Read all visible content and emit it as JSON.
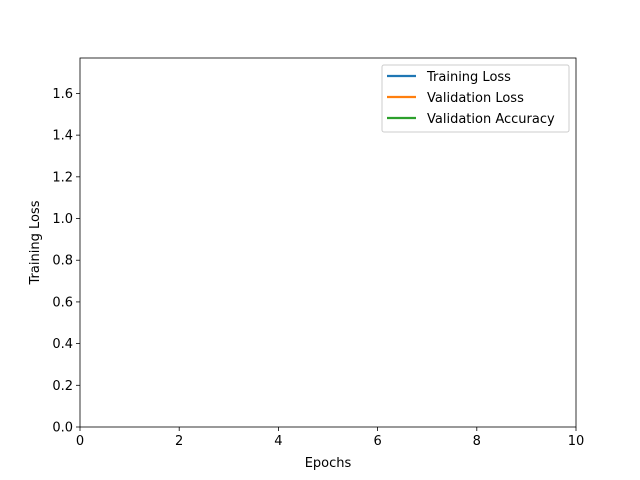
{
  "chart_data": {
    "type": "line",
    "title": "",
    "xlabel": "Epochs",
    "ylabel": "Training Loss",
    "xlim": [
      0,
      10
    ],
    "ylim": [
      0,
      1.77
    ],
    "xticks": [
      0,
      2,
      4,
      6,
      8,
      10
    ],
    "xtick_labels": [
      "0",
      "2",
      "4",
      "6",
      "8",
      "10"
    ],
    "yticks": [
      0,
      0.2,
      0.4,
      0.6,
      0.8,
      1.0,
      1.2,
      1.4,
      1.6
    ],
    "ytick_labels": [
      "0.0",
      "0.2",
      "0.4",
      "0.6",
      "0.8",
      "1.0",
      "1.2",
      "1.4",
      "1.6"
    ],
    "grid": false,
    "legend_position": "top-right",
    "series": [
      {
        "name": "Training Loss",
        "color": "#1f77b4",
        "x": [],
        "y": []
      },
      {
        "name": "Validation Loss",
        "color": "#ff7f0e",
        "x": [],
        "y": []
      },
      {
        "name": "Validation Accuracy",
        "color": "#2ca02c",
        "x": [],
        "y": []
      }
    ]
  }
}
